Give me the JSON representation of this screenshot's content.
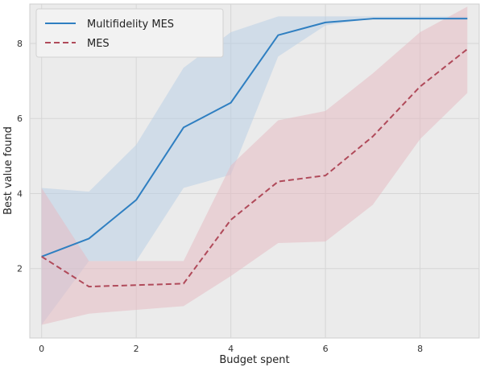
{
  "chart_data": {
    "type": "line",
    "xlabel": "Budget spent",
    "ylabel": "Best value found",
    "xlim": [
      -0.25,
      9.25
    ],
    "ylim": [
      0.15,
      9.05
    ],
    "xticks": [
      0,
      2,
      4,
      6,
      8
    ],
    "yticks": [
      2,
      4,
      6,
      8
    ],
    "grid": true,
    "legend_position": "top-left",
    "x": [
      0,
      1,
      2,
      3,
      4,
      5,
      6,
      7,
      8,
      9
    ],
    "series": [
      {
        "name": "Multifidelity MES",
        "style": "solid",
        "color": "#2f7fc1",
        "band_color": "#b9cfe6",
        "values": [
          2.32,
          2.8,
          3.83,
          5.76,
          6.42,
          8.22,
          8.56,
          8.66,
          8.66,
          8.66
        ],
        "lower": [
          0.5,
          2.2,
          2.2,
          4.15,
          4.5,
          7.65,
          8.48,
          8.66,
          8.66,
          8.66
        ],
        "upper": [
          4.15,
          4.05,
          5.3,
          7.35,
          8.3,
          8.72,
          8.72,
          8.72,
          8.72,
          8.72
        ]
      },
      {
        "name": "MES",
        "style": "dashed",
        "color": "#b04a5a",
        "band_color": "#e5bcc3",
        "values": [
          2.32,
          1.52,
          1.56,
          1.6,
          3.3,
          4.32,
          4.48,
          5.52,
          6.85,
          7.85
        ],
        "lower": [
          0.5,
          0.8,
          0.9,
          1.0,
          1.8,
          2.68,
          2.72,
          3.7,
          5.45,
          6.68
        ],
        "upper": [
          4.15,
          2.2,
          2.2,
          2.2,
          4.75,
          5.95,
          6.2,
          7.2,
          8.3,
          8.98
        ]
      }
    ]
  }
}
